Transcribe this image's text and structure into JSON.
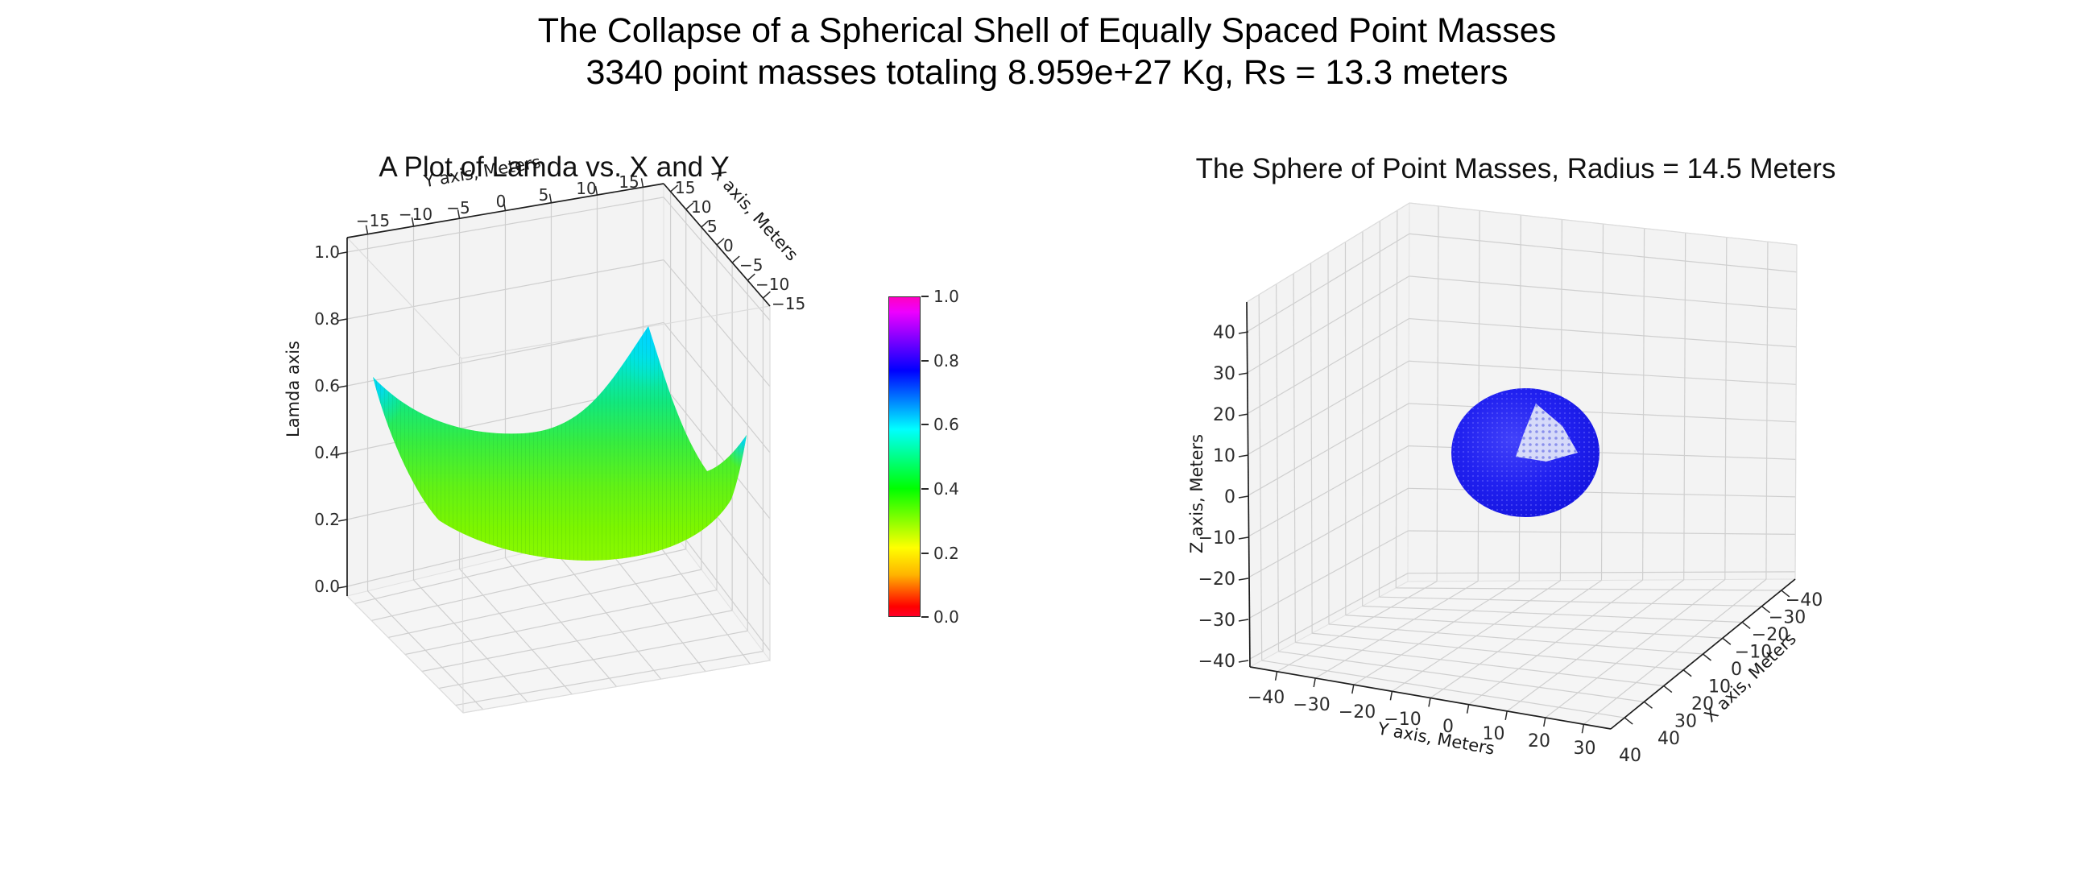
{
  "figure": {
    "suptitle_line1": "The Collapse of a Spherical Shell of Equally Spaced Point Masses",
    "suptitle_line2": "3340 point masses totaling 8.959e+27 Kg, Rs = 13.3 meters",
    "background": "#ffffff"
  },
  "chart_data": [
    {
      "type": "surface",
      "title": "A Plot of Lamda vs. X and Y",
      "xlabel": "X axis, Meters",
      "ylabel": "Y axis, Meters",
      "zlabel": "Lamda axis",
      "xlim": [
        15,
        -15
      ],
      "ylim": [
        -15,
        15
      ],
      "zlim": [
        0.0,
        1.0
      ],
      "xticks": [
        "15",
        "10",
        "5",
        "0",
        "−5",
        "−10",
        "−15"
      ],
      "yticks": [
        "−15",
        "−10",
        "−5",
        "0",
        "5",
        "10",
        "15"
      ],
      "zticks": [
        "1.0",
        "0.8",
        "0.6",
        "0.4",
        "0.2",
        "0.0"
      ],
      "grid": true,
      "colormap": "gist_rainbow",
      "surface_summary": {
        "shape": "bowl: flat chartreuse-green center rising to cyan peaks at the four domain corners",
        "center_value": 0.25,
        "corner_peak_values": [
          0.62,
          0.78,
          0.45,
          0.45
        ],
        "value_range_shown": [
          0.05,
          0.78
        ]
      }
    },
    {
      "type": "scatter3d",
      "title": "The Sphere of Point Masses, Radius = 14.5 Meters",
      "xlabel": "X axis, Meters",
      "ylabel": "Y axis, Meters",
      "zlabel": "Z axis, Meters",
      "xlim": [
        40,
        -40
      ],
      "ylim": [
        -40,
        40
      ],
      "zlim": [
        -40,
        40
      ],
      "xticks": [
        "40",
        "30",
        "20",
        "10",
        "0",
        "−10",
        "−20",
        "−30",
        "−40"
      ],
      "yticks": [
        "−40",
        "−30",
        "−20",
        "−10",
        "0",
        "10",
        "20",
        "30",
        "40"
      ],
      "zticks": [
        "40",
        "30",
        "20",
        "10",
        "0",
        "−10",
        "−20",
        "−30",
        "−40"
      ],
      "grid": true,
      "points": {
        "count": 3340,
        "color": "#1c1cf0",
        "arrangement": "equally spaced points on a spherical shell",
        "radius_m": 14.5,
        "approx_center_xyz": [
          0,
          0,
          10
        ],
        "sparse_patch": "triangular lower-density patch on upper-right of sphere face"
      }
    }
  ],
  "colorbar": {
    "ticks": [
      "1.0",
      "0.8",
      "0.6",
      "0.4",
      "0.2",
      "0.0"
    ],
    "range": [
      0.0,
      1.0
    ],
    "colormap": "gist_rainbow",
    "gradient_bottom_to_top": [
      "#ff0028",
      "#ff0000",
      "#ffff00",
      "#00ff00",
      "#00ffff",
      "#0000ff",
      "#ff00ff",
      "#ff00c3"
    ]
  }
}
